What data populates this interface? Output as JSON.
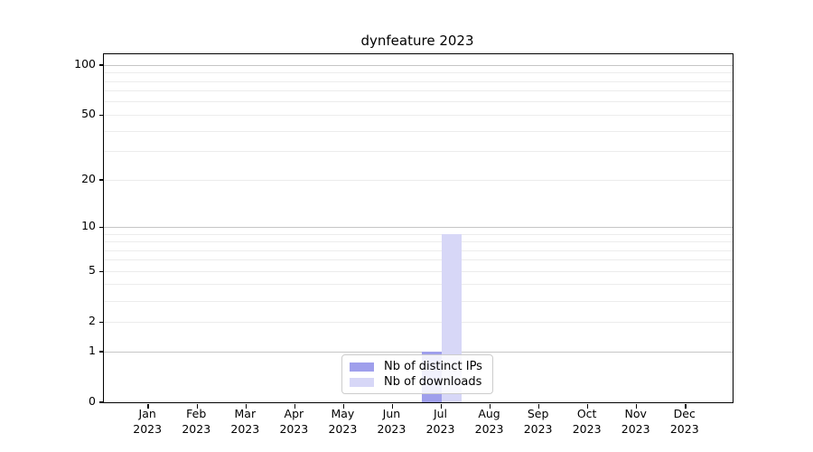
{
  "chart_data": {
    "type": "bar",
    "title": "dynfeature 2023",
    "categories": [
      "Jan 2023",
      "Feb 2023",
      "Mar 2023",
      "Apr 2023",
      "May 2023",
      "Jun 2023",
      "Jul 2023",
      "Aug 2023",
      "Sep 2023",
      "Oct 2023",
      "Nov 2023",
      "Dec 2023"
    ],
    "x_tick_line1": [
      "Jan",
      "Feb",
      "Mar",
      "Apr",
      "May",
      "Jun",
      "Jul",
      "Aug",
      "Sep",
      "Oct",
      "Nov",
      "Dec"
    ],
    "x_tick_line2": "2023",
    "series": [
      {
        "name": "Nb of distinct IPs",
        "color": "#9f9fec",
        "values": [
          0,
          0,
          0,
          0,
          0,
          0,
          1,
          0,
          0,
          0,
          0,
          0
        ]
      },
      {
        "name": "Nb of downloads",
        "color": "#d7d7f7",
        "values": [
          0,
          0,
          0,
          0,
          0,
          0,
          9,
          0,
          0,
          0,
          0,
          0
        ]
      }
    ],
    "yscale": "log1p",
    "ylim": [
      0,
      117
    ],
    "yticks": [
      0,
      1,
      2,
      5,
      10,
      20,
      50,
      100
    ],
    "major_gridlines": [
      1,
      10,
      100
    ],
    "minor_gridlines": [
      2,
      3,
      4,
      5,
      6,
      7,
      8,
      9,
      20,
      30,
      40,
      50,
      60,
      70,
      80,
      90
    ],
    "grid": true,
    "legend_position": "lower center",
    "legend_entries": [
      "Nb of distinct IPs",
      "Nb of downloads"
    ]
  },
  "colors": {
    "major_gridline": "#c6c6c6",
    "minor_gridline": "#ececec",
    "spine": "#000000",
    "distinct_ips_bar": "#9f9fec",
    "downloads_bar": "#d7d7f7"
  }
}
